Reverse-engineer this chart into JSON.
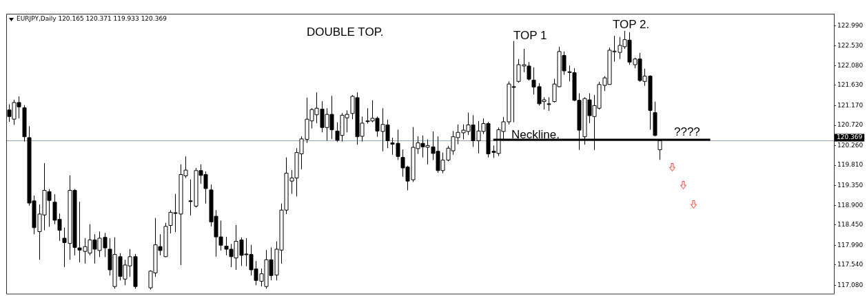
{
  "chart_data": {
    "type": "candlestick",
    "title": "EURJPY,Daily 120.165 120.371 119.933 120.369",
    "categories": [
      null,
      null,
      null,
      null,
      null,
      null,
      null,
      null,
      null,
      null,
      null,
      null,
      null,
      null,
      null,
      null,
      null,
      null,
      null,
      null,
      null,
      null,
      null,
      null,
      null,
      null,
      null,
      null,
      null,
      null,
      null,
      null,
      null,
      null,
      null,
      null,
      null,
      null,
      null,
      null,
      null,
      null,
      null,
      null,
      null,
      null,
      null,
      null,
      null,
      null,
      null,
      null,
      null,
      null,
      null,
      null,
      null,
      null,
      null,
      null,
      null,
      null,
      null,
      null,
      null,
      null,
      null,
      null,
      null,
      null,
      null,
      null,
      null,
      null,
      null,
      null,
      null,
      null,
      null,
      null,
      null,
      null,
      null,
      null,
      null,
      null,
      null,
      null,
      null,
      null,
      null,
      null,
      null,
      null,
      null,
      null,
      null,
      null,
      null,
      null,
      null,
      null,
      null,
      null,
      null,
      null,
      null,
      null,
      null,
      null,
      null,
      null,
      null,
      null,
      null,
      null,
      null,
      null,
      null,
      null,
      null,
      null,
      null,
      null,
      null,
      null,
      null,
      null,
      null,
      null,
      null,
      null,
      null,
      null,
      null,
      null,
      null,
      null,
      null,
      null,
      null,
      null,
      null,
      null,
      null,
      null,
      null,
      null,
      null,
      null,
      null,
      null,
      null,
      null,
      null,
      null,
      null,
      null,
      null,
      null,
      null,
      null,
      null,
      null
    ],
    "ohlc": [
      [
        121.07,
        121.2,
        120.8,
        120.92
      ],
      [
        120.86,
        121.3,
        120.73,
        121.24
      ],
      [
        121.24,
        121.38,
        120.88,
        121.14
      ],
      [
        121.12,
        121.18,
        120.35,
        120.46
      ],
      [
        120.44,
        120.7,
        118.89,
        118.95
      ],
      [
        119.0,
        119.12,
        118.24,
        118.39
      ],
      [
        118.3,
        118.92,
        117.66,
        118.7
      ],
      [
        118.68,
        119.86,
        118.33,
        119.24
      ],
      [
        119.21,
        119.27,
        118.41,
        119.01
      ],
      [
        118.97,
        119.15,
        118.47,
        118.56
      ],
      [
        118.58,
        118.71,
        118.09,
        118.33
      ],
      [
        118.15,
        118.39,
        117.49,
        118.05
      ],
      [
        118.03,
        119.58,
        117.66,
        119.24
      ],
      [
        119.24,
        119.27,
        117.76,
        117.94
      ],
      [
        117.93,
        118.98,
        117.6,
        117.88
      ],
      [
        117.85,
        118.15,
        117.57,
        117.96
      ],
      [
        117.81,
        118.47,
        117.76,
        118.11
      ],
      [
        118.11,
        118.24,
        117.57,
        117.9
      ],
      [
        117.87,
        118.3,
        117.72,
        118.15
      ],
      [
        118.17,
        118.27,
        117.72,
        117.93
      ],
      [
        117.9,
        118.15,
        117.3,
        117.43
      ],
      [
        117.05,
        118.17,
        117.0,
        117.78
      ],
      [
        117.73,
        117.81,
        117.19,
        117.28
      ],
      [
        117.22,
        117.66,
        117.08,
        117.54
      ],
      [
        117.52,
        117.9,
        117.27,
        117.73
      ],
      [
        117.73,
        117.79,
        117.0,
        117.05
      ],
      null,
      null,
      [
        117.02,
        117.42,
        116.98,
        117.4
      ],
      [
        117.36,
        118.61,
        117.27,
        118.0
      ],
      [
        117.96,
        118.24,
        117.76,
        117.87
      ],
      [
        117.73,
        118.5,
        117.72,
        118.42
      ],
      [
        118.44,
        118.79,
        118.26,
        118.74
      ],
      [
        118.73,
        119.16,
        118.29,
        118.72
      ],
      [
        118.7,
        119.83,
        117.54,
        119.6
      ],
      [
        119.57,
        120.01,
        119.52,
        119.7
      ],
      [
        119.0,
        119.49,
        118.67,
        118.99
      ],
      [
        118.88,
        119.75,
        118.85,
        119.69
      ],
      [
        119.69,
        119.83,
        119.39,
        119.58
      ],
      [
        119.6,
        119.67,
        118.94,
        119.28
      ],
      [
        119.25,
        119.37,
        118.42,
        118.52
      ],
      [
        118.65,
        118.79,
        117.73,
        118.18
      ],
      [
        118.18,
        118.55,
        117.87,
        117.99
      ],
      [
        117.97,
        118.18,
        117.76,
        117.9
      ],
      [
        117.9,
        118.02,
        117.49,
        117.73
      ],
      [
        117.7,
        118.45,
        117.43,
        118.08
      ],
      [
        118.11,
        118.17,
        117.52,
        117.76
      ],
      [
        117.79,
        118.15,
        117.51,
        117.78
      ],
      [
        117.78,
        118.0,
        117.3,
        117.43
      ],
      [
        117.45,
        117.63,
        117.08,
        117.19
      ],
      [
        117.17,
        117.46,
        117.05,
        117.34
      ],
      [
        117.05,
        117.88,
        117.0,
        117.66
      ],
      [
        117.66,
        117.94,
        117.19,
        117.3
      ],
      [
        117.31,
        118.08,
        117.19,
        117.9
      ],
      [
        117.88,
        118.94,
        117.57,
        118.79
      ],
      [
        118.79,
        119.99,
        118.7,
        119.63
      ],
      [
        119.45,
        119.7,
        119.16,
        119.52
      ],
      [
        119.52,
        120.2,
        119.1,
        120.1
      ],
      [
        120.07,
        120.47,
        119.72,
        120.41
      ],
      [
        120.4,
        121.35,
        120.32,
        120.86
      ],
      [
        120.82,
        121.11,
        120.65,
        121.08
      ],
      [
        120.96,
        121.47,
        120.77,
        121.11
      ],
      [
        121.09,
        121.27,
        120.56,
        120.67
      ],
      [
        120.67,
        121.11,
        120.37,
        120.97
      ],
      [
        120.97,
        121.39,
        120.41,
        120.62
      ],
      [
        120.59,
        120.79,
        120.34,
        120.38
      ],
      [
        120.49,
        121.0,
        120.35,
        120.95
      ],
      [
        120.89,
        121.06,
        120.56,
        120.97
      ],
      [
        120.99,
        121.41,
        120.86,
        121.38
      ],
      [
        121.35,
        121.47,
        120.28,
        120.46
      ],
      [
        120.47,
        120.92,
        120.35,
        120.77
      ],
      [
        120.82,
        121.11,
        120.76,
        120.81
      ],
      [
        120.82,
        121.29,
        120.79,
        120.88
      ],
      [
        120.88,
        120.92,
        120.46,
        120.59
      ],
      [
        120.58,
        121.11,
        120.13,
        120.74
      ],
      [
        120.73,
        120.85,
        120.2,
        120.37
      ],
      [
        120.32,
        120.44,
        120.05,
        120.29
      ],
      [
        120.31,
        120.62,
        119.93,
        120.01
      ],
      [
        119.99,
        120.17,
        119.55,
        119.75
      ],
      [
        119.77,
        119.8,
        119.24,
        119.45
      ],
      [
        119.48,
        120.68,
        119.43,
        120.22
      ],
      [
        120.19,
        120.47,
        120.07,
        120.32
      ],
      [
        120.31,
        120.49,
        119.99,
        120.23
      ],
      [
        120.22,
        120.4,
        119.83,
        120.26
      ],
      [
        120.23,
        120.58,
        119.93,
        120.08
      ],
      [
        120.13,
        120.47,
        119.64,
        119.69
      ],
      [
        119.69,
        120.1,
        119.63,
        119.93
      ],
      [
        119.93,
        120.25,
        119.9,
        120.2
      ],
      [
        120.14,
        120.59,
        120.05,
        120.46
      ],
      [
        120.44,
        120.74,
        120.29,
        120.56
      ],
      [
        120.55,
        120.74,
        120.4,
        120.61
      ],
      [
        120.58,
        121.01,
        120.5,
        120.73
      ],
      [
        120.73,
        120.95,
        120.23,
        120.37
      ],
      [
        120.37,
        120.82,
        120.08,
        120.59
      ],
      [
        120.58,
        120.88,
        120.52,
        120.76
      ],
      [
        120.76,
        120.8,
        119.99,
        120.07
      ],
      [
        120.13,
        120.26,
        119.98,
        120.1
      ],
      [
        120.08,
        120.67,
        120.02,
        120.62
      ],
      [
        120.58,
        120.91,
        120.37,
        120.8
      ],
      [
        120.8,
        121.72,
        120.74,
        121.66
      ],
      [
        121.6,
        122.64,
        120.79,
        121.59
      ],
      [
        121.72,
        122.23,
        121.69,
        122.1
      ],
      [
        122.07,
        122.46,
        121.93,
        122.1
      ],
      [
        122.07,
        122.16,
        121.74,
        121.77
      ],
      [
        121.75,
        122.04,
        121.42,
        121.59
      ],
      [
        121.6,
        121.68,
        121.17,
        121.21
      ],
      [
        121.26,
        121.36,
        121.08,
        121.3
      ],
      [
        121.21,
        121.36,
        121.05,
        121.2
      ],
      [
        121.26,
        121.78,
        121.24,
        121.66
      ],
      [
        121.6,
        122.51,
        121.59,
        122.4
      ],
      [
        122.31,
        122.4,
        121.87,
        121.96
      ],
      [
        121.94,
        122.08,
        121.72,
        121.93
      ],
      [
        121.92,
        122.02,
        121.27,
        121.29
      ],
      [
        121.29,
        121.45,
        120.16,
        120.61
      ],
      [
        120.46,
        121.36,
        120.28,
        121.33
      ],
      [
        121.3,
        121.45,
        120.77,
        120.94
      ],
      [
        120.92,
        121.41,
        120.16,
        121.17
      ],
      [
        121.11,
        121.71,
        121.08,
        121.65
      ],
      [
        121.63,
        121.84,
        121.5,
        121.8
      ],
      [
        121.65,
        122.49,
        121.65,
        122.43
      ],
      [
        122.4,
        122.76,
        122.17,
        122.41
      ],
      [
        122.38,
        122.73,
        122.23,
        122.54
      ],
      [
        122.51,
        122.87,
        122.46,
        122.67
      ],
      [
        122.66,
        122.84,
        122.1,
        122.16
      ],
      [
        122.1,
        122.26,
        122.02,
        122.23
      ],
      [
        122.23,
        122.37,
        121.71,
        121.74
      ],
      [
        121.72,
        122.01,
        121.62,
        121.84
      ],
      [
        121.84,
        121.86,
        120.62,
        121.06
      ],
      [
        121.01,
        121.26,
        120.47,
        120.49
      ],
      [
        120.165,
        120.371,
        119.933,
        120.369
      ],
      null,
      null,
      null,
      null,
      null,
      null,
      null,
      null,
      null,
      null,
      null,
      null,
      null,
      null,
      null,
      null,
      null,
      null,
      null,
      null,
      null,
      null,
      null,
      null,
      null,
      null,
      null,
      null,
      null,
      null,
      null,
      null,
      null,
      null
    ],
    "series": [
      {
        "type": "line",
        "color": "#000000",
        "values": [
          null,
          null,
          null,
          null,
          null,
          null,
          null,
          null,
          null,
          null,
          null,
          null,
          null,
          null,
          null,
          null,
          null,
          null,
          null,
          null,
          null,
          null,
          null,
          null,
          null,
          null,
          null,
          null,
          null,
          null,
          null,
          null,
          null,
          null,
          null,
          null,
          null,
          null,
          null,
          null,
          null,
          null,
          null,
          null,
          null,
          null,
          null,
          null,
          null,
          null,
          null,
          null,
          null,
          null,
          null,
          null,
          null,
          null,
          null,
          null,
          null,
          null,
          null,
          null,
          null,
          null,
          null,
          null,
          null,
          null,
          null,
          null,
          null,
          null,
          null,
          null,
          null,
          null,
          null,
          null,
          null,
          null,
          null,
          null,
          null,
          null,
          null,
          null,
          null,
          null,
          null,
          null,
          null,
          null,
          null,
          null,
          120.39,
          120.39,
          120.39,
          120.39,
          120.39,
          120.39,
          120.39,
          120.39,
          120.39,
          120.39,
          120.39,
          120.39,
          120.39,
          120.39,
          120.39,
          120.39,
          120.39,
          120.39,
          120.39,
          120.39,
          120.39,
          120.39,
          120.39,
          120.39,
          120.39,
          120.39,
          120.39,
          120.39,
          120.39,
          120.39,
          120.39,
          120.39,
          120.39,
          120.39,
          120.39,
          120.39,
          120.39,
          120.39,
          120.39,
          120.39,
          120.39,
          120.39,
          120.39,
          120.39,
          null,
          null,
          null,
          null,
          null,
          null,
          null,
          null,
          null,
          null,
          null,
          null,
          null,
          null,
          null,
          null,
          null,
          null,
          null,
          null,
          null,
          null,
          null,
          null
        ]
      }
    ],
    "ylim": [
      116.95,
      123.26
    ],
    "yticks": [
      {
        "value": 122.99,
        "label": "122.990"
      },
      {
        "value": 122.53,
        "label": "122.530"
      },
      {
        "value": 122.08,
        "label": "122.080"
      },
      {
        "value": 121.63,
        "label": "121.630"
      },
      {
        "value": 121.17,
        "label": "121.170"
      },
      {
        "value": 120.72,
        "label": "120.720"
      },
      {
        "value": 120.26,
        "label": "120.260"
      },
      {
        "value": 119.81,
        "label": "119.810"
      },
      {
        "value": 119.35,
        "label": "119.350"
      },
      {
        "value": 118.9,
        "label": "118.900"
      },
      {
        "value": 118.45,
        "label": "118.450"
      },
      {
        "value": 117.99,
        "label": "117.990"
      },
      {
        "value": 117.54,
        "label": "117.540"
      },
      {
        "value": 117.08,
        "label": "117.080"
      }
    ],
    "tick_labels": "y",
    "ref_lines": [
      {
        "axis": "y",
        "value": 120.369,
        "label": "120.369",
        "color": "#8fa3b8"
      }
    ],
    "annotations": [
      "DOUBLE TOP.",
      "TOP 1",
      "TOP 2.",
      "Neckline.",
      "????"
    ]
  }
}
